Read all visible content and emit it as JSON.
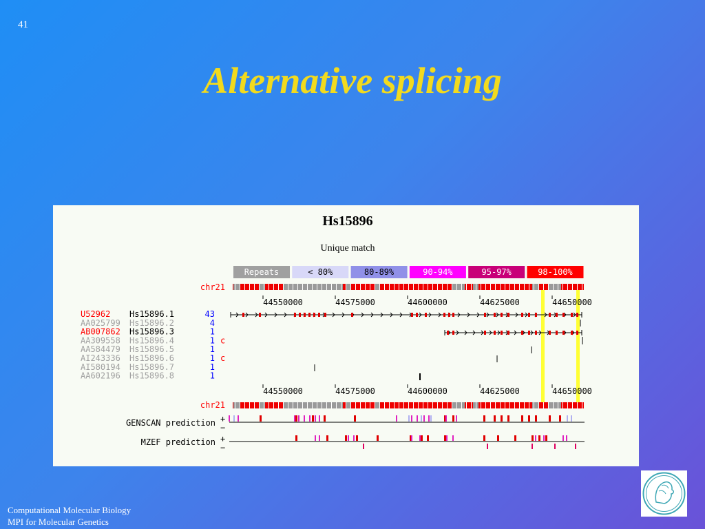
{
  "slide": {
    "number": "41",
    "title": "Alternative splicing",
    "footer_line1": "Computational Molecular Biology",
    "footer_line2": "MPI for Molecular Genetics"
  },
  "figure": {
    "title": "Hs15896",
    "subtitle": "Unique match",
    "legend": [
      {
        "label": "Repeats",
        "color": "#a0a0a0",
        "text_color": "#ffffff"
      },
      {
        "label": "< 80%",
        "color": "#d8d8f8",
        "text_color": "#000000"
      },
      {
        "label": "80-89%",
        "color": "#9090e8",
        "text_color": "#000000"
      },
      {
        "label": "90-94%",
        "color": "#ff00ff",
        "text_color": "#ffffff"
      },
      {
        "label": "95-97%",
        "color": "#c80078",
        "text_color": "#ffffff"
      },
      {
        "label": "98-100%",
        "color": "#ff0000",
        "text_color": "#ffffff"
      }
    ],
    "chrom_label": "chr21",
    "axis_ticks": [
      "44550000",
      "44575000",
      "44600000",
      "44625000",
      "44650000"
    ],
    "tracks": [
      {
        "acc": "U52962",
        "acc_color": "#ff0000",
        "cluster": "Hs15896.1",
        "cluster_color": "#000000",
        "count": "43",
        "flag": ""
      },
      {
        "acc": "AA025799",
        "acc_color": "#a0a0a0",
        "cluster": "Hs15896.2",
        "cluster_color": "#a0a0a0",
        "count": "4",
        "flag": ""
      },
      {
        "acc": "AB007862",
        "acc_color": "#ff0000",
        "cluster": "Hs15896.3",
        "cluster_color": "#000000",
        "count": "1",
        "flag": ""
      },
      {
        "acc": "AA309558",
        "acc_color": "#a0a0a0",
        "cluster": "Hs15896.4",
        "cluster_color": "#a0a0a0",
        "count": "1",
        "flag": "c"
      },
      {
        "acc": "AA584479",
        "acc_color": "#a0a0a0",
        "cluster": "Hs15896.5",
        "cluster_color": "#a0a0a0",
        "count": "1",
        "flag": ""
      },
      {
        "acc": "AI243336",
        "acc_color": "#a0a0a0",
        "cluster": "Hs15896.6",
        "cluster_color": "#a0a0a0",
        "count": "1",
        "flag": "c"
      },
      {
        "acc": "AI580194",
        "acc_color": "#a0a0a0",
        "cluster": "Hs15896.7",
        "cluster_color": "#a0a0a0",
        "count": "1",
        "flag": ""
      },
      {
        "acc": "AA602196",
        "acc_color": "#a0a0a0",
        "cluster": "Hs15896.8",
        "cluster_color": "#a0a0a0",
        "count": "1",
        "flag": ""
      }
    ],
    "genscan_label": "GENSCAN prediction",
    "mzef_label": "MZEF prediction",
    "plus_sign": "+",
    "minus_sign": "−",
    "colors": {
      "chrom_label": "#ff0000",
      "count": "#0000ff",
      "flag": "#ff0000",
      "highlight": "#ffff33",
      "exon": "#e00000"
    }
  }
}
